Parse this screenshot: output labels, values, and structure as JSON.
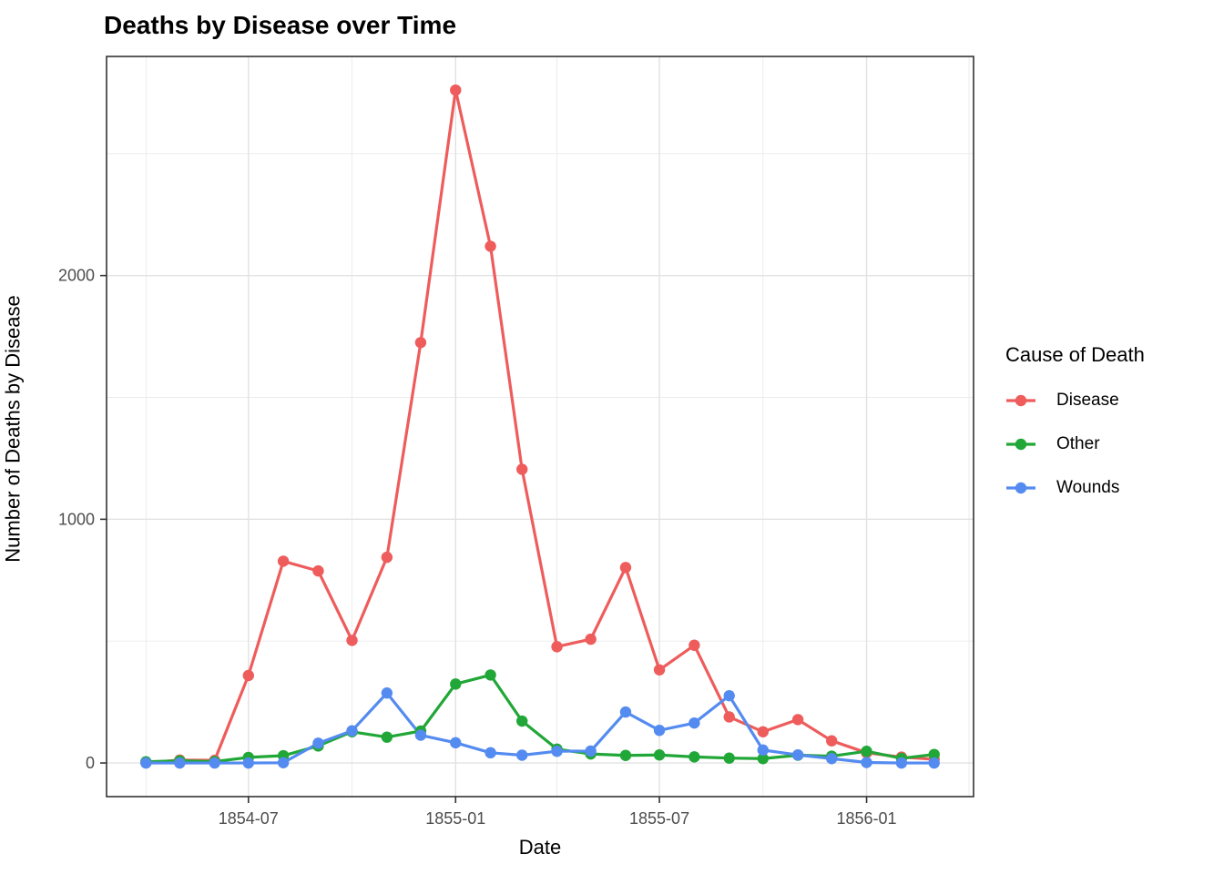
{
  "title": "Deaths by Disease over Time",
  "axes": {
    "x_label": "Date",
    "y_label": "Number of Deaths by Disease",
    "x_ticks": [
      {
        "label": "1854-07",
        "date": "1854-07-01"
      },
      {
        "label": "1855-01",
        "date": "1855-01-01"
      },
      {
        "label": "1855-07",
        "date": "1855-07-01"
      },
      {
        "label": "1856-01",
        "date": "1856-01-01"
      }
    ],
    "x_minor": [
      "1854-04-01",
      "1854-10-01",
      "1855-04-01",
      "1855-10-01",
      "1856-04-01"
    ],
    "y_ticks": [
      {
        "label": "0",
        "value": 0
      },
      {
        "label": "1000",
        "value": 1000
      },
      {
        "label": "2000",
        "value": 2000
      }
    ],
    "y_minor": [
      500,
      1500,
      2500
    ]
  },
  "legend": {
    "title": "Cause of Death",
    "items": [
      {
        "label": "Disease",
        "color": "#ee5c5c"
      },
      {
        "label": "Other",
        "color": "#21a737"
      },
      {
        "label": "Wounds",
        "color": "#548bf0"
      }
    ]
  },
  "colors": {
    "grid_major": "#e2e2e2",
    "grid_minor": "#ebebeb",
    "panel_border": "#333333",
    "tick": "#333333",
    "tick_text": "#4d4d4d"
  },
  "chart_data": {
    "type": "line",
    "title": "Deaths by Disease over Time",
    "xlabel": "Date",
    "ylabel": "Number of Deaths by Disease",
    "grid": true,
    "legend_position": "right",
    "legend_title": "Cause of Death",
    "x": [
      "1854-04",
      "1854-05",
      "1854-06",
      "1854-07",
      "1854-08",
      "1854-09",
      "1854-10",
      "1854-11",
      "1854-12",
      "1855-01",
      "1855-02",
      "1855-03",
      "1855-04",
      "1855-05",
      "1855-06",
      "1855-07",
      "1855-08",
      "1855-09",
      "1855-10",
      "1855-11",
      "1855-12",
      "1856-01",
      "1856-02",
      "1856-03"
    ],
    "series": [
      {
        "name": "Disease",
        "color": "#ee5c5c",
        "values": [
          1,
          12,
          11,
          359,
          828,
          788,
          503,
          844,
          1725,
          2761,
          2120,
          1205,
          477,
          508,
          802,
          382,
          483,
          189,
          128,
          178,
          91,
          42,
          24,
          15
        ]
      },
      {
        "name": "Other",
        "color": "#21a737",
        "values": [
          5,
          9,
          6,
          23,
          30,
          70,
          128,
          106,
          131,
          324,
          361,
          172,
          57,
          37,
          31,
          33,
          25,
          20,
          18,
          32,
          28,
          48,
          19,
          35
        ]
      },
      {
        "name": "Wounds",
        "color": "#548bf0",
        "values": [
          0,
          0,
          0,
          0,
          1,
          81,
          132,
          287,
          114,
          83,
          42,
          32,
          48,
          49,
          209,
          134,
          164,
          276,
          53,
          33,
          18,
          2,
          0,
          0
        ]
      }
    ],
    "xlim": [
      "1854-02-25",
      "1856-04-05"
    ],
    "ylim": [
      -138,
      2899
    ]
  }
}
